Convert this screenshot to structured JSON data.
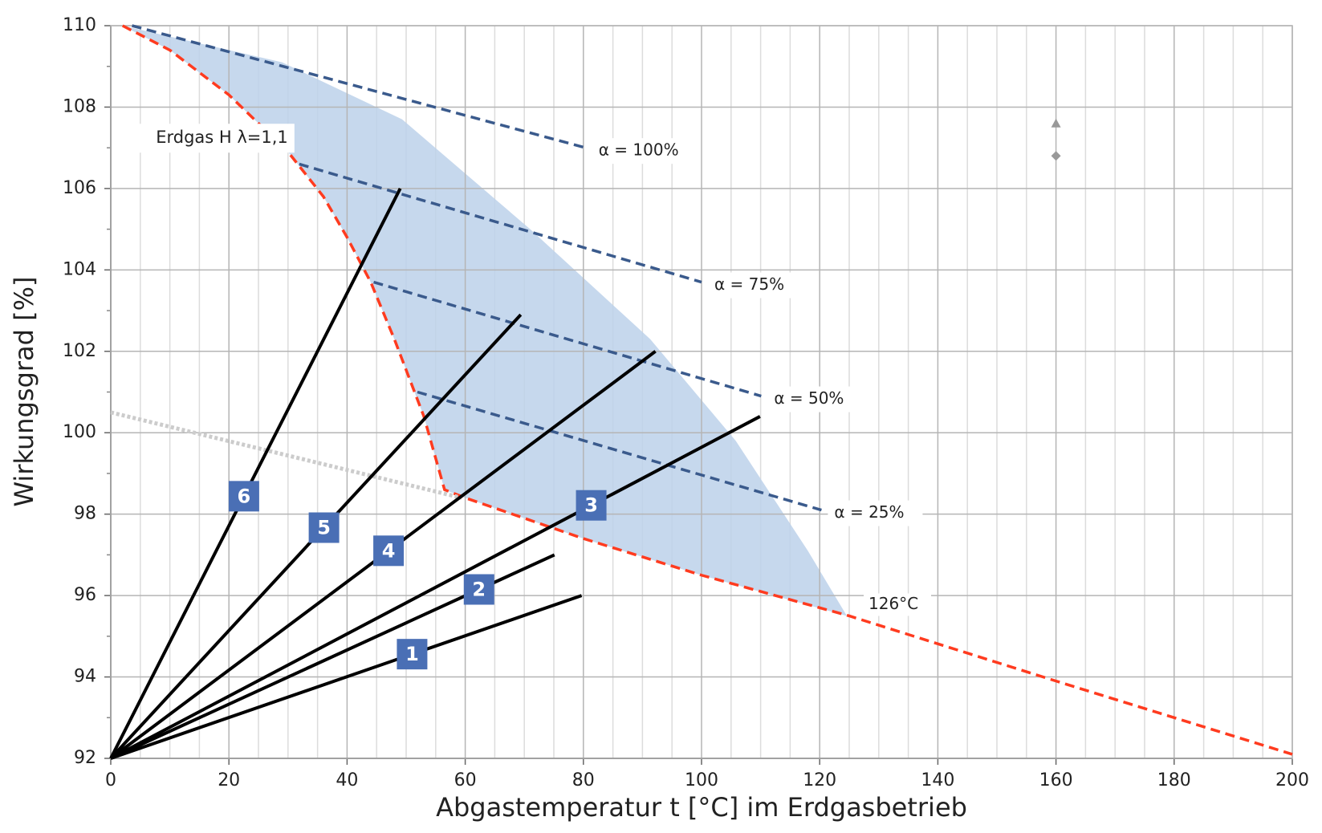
{
  "chart_data": {
    "type": "line",
    "xlabel": "Abgastemperatur t [°C] im Erdgasbetrieb",
    "ylabel": "Wirkungsgrad [%]",
    "xlim": [
      0,
      200
    ],
    "ylim": [
      92,
      110
    ],
    "xticks": [
      0,
      20,
      40,
      60,
      80,
      100,
      120,
      140,
      160,
      180,
      200
    ],
    "yticks": [
      92,
      94,
      96,
      98,
      100,
      102,
      104,
      106,
      108,
      110
    ],
    "minor_xticks": [
      5,
      10,
      15,
      25,
      30,
      35,
      45,
      50,
      55,
      65,
      70,
      75,
      85,
      90,
      95,
      105,
      110,
      115,
      125,
      130,
      135,
      145,
      150,
      155,
      165,
      170,
      175,
      185,
      190,
      195
    ],
    "minor_yticks": [
      93,
      95,
      97,
      99,
      101,
      103,
      105,
      107,
      109
    ],
    "grid": true,
    "region": {
      "color": "#bcd1ea",
      "x": [
        2,
        29,
        49.3,
        71,
        91.3,
        105.8,
        118,
        124.6,
        100,
        80,
        60,
        56.5,
        53,
        48,
        44,
        40,
        36,
        30,
        20,
        10
      ],
      "values": [
        110,
        109.1,
        107.7,
        105,
        102.3,
        99.8,
        97.1,
        95.5,
        96.5,
        97.4,
        98.4,
        98.6,
        100.4,
        102.3,
        103.7,
        104.8,
        105.8,
        106.9,
        108.3,
        109.4
      ]
    },
    "annotation": "126°C",
    "series": [
      {
        "name": "Erdgas H λ=1,1",
        "color": "#ff3b1f",
        "style": "dashed",
        "x": [
          2,
          10,
          20,
          30,
          36,
          40,
          44,
          48,
          53,
          56.5,
          60,
          80,
          100,
          125,
          160,
          200
        ],
        "values": [
          110,
          109.4,
          108.3,
          106.9,
          105.8,
          104.8,
          103.7,
          102.3,
          100.4,
          98.6,
          98.4,
          97.4,
          96.5,
          95.5,
          93.9,
          92.1
        ]
      },
      {
        "name": "α = 100%",
        "color": "#3a5a8c",
        "style": "dashed",
        "x": [
          3.6,
          80.4
        ],
        "values": [
          110,
          107
        ]
      },
      {
        "name": "α = 75%",
        "color": "#3a5a8c",
        "style": "dashed",
        "x": [
          31.9,
          100
        ],
        "values": [
          106.6,
          103.7
        ]
      },
      {
        "name": "α = 50%",
        "color": "#3a5a8c",
        "style": "dashed",
        "x": [
          44.5,
          110.1
        ],
        "values": [
          103.7,
          100.9
        ]
      },
      {
        "name": "α = 25%",
        "color": "#3a5a8c",
        "style": "dashed",
        "x": [
          51.9,
          120.3
        ],
        "values": [
          101,
          98.1
        ]
      },
      {
        "color": "#cccccc",
        "style": "dotted",
        "x": [
          0,
          59.4
        ],
        "values": [
          100.5,
          98.4
        ]
      },
      {
        "name": "1",
        "color": "#000000",
        "style": "solid",
        "x": [
          0,
          79.7
        ],
        "values": [
          92,
          96
        ]
      },
      {
        "name": "2",
        "color": "#000000",
        "style": "solid",
        "x": [
          0,
          75.1
        ],
        "values": [
          92,
          97
        ]
      },
      {
        "name": "3",
        "color": "#000000",
        "style": "solid",
        "x": [
          0,
          109.9
        ],
        "values": [
          92,
          100.4
        ]
      },
      {
        "name": "4",
        "color": "#000000",
        "style": "solid",
        "x": [
          0,
          92.2
        ],
        "values": [
          92,
          102
        ]
      },
      {
        "name": "5",
        "color": "#000000",
        "style": "solid",
        "x": [
          0,
          69.4
        ],
        "values": [
          92,
          102.9
        ]
      },
      {
        "name": "6",
        "color": "#000000",
        "style": "solid",
        "x": [
          0,
          49
        ],
        "values": [
          92,
          106
        ]
      },
      {
        "type": "scatter",
        "color": "#999999",
        "marker": [
          "triangle",
          "diamond"
        ],
        "x": [
          160,
          160
        ],
        "values": [
          107.6,
          106.8
        ]
      }
    ],
    "box_color": "#4a6fb5"
  }
}
